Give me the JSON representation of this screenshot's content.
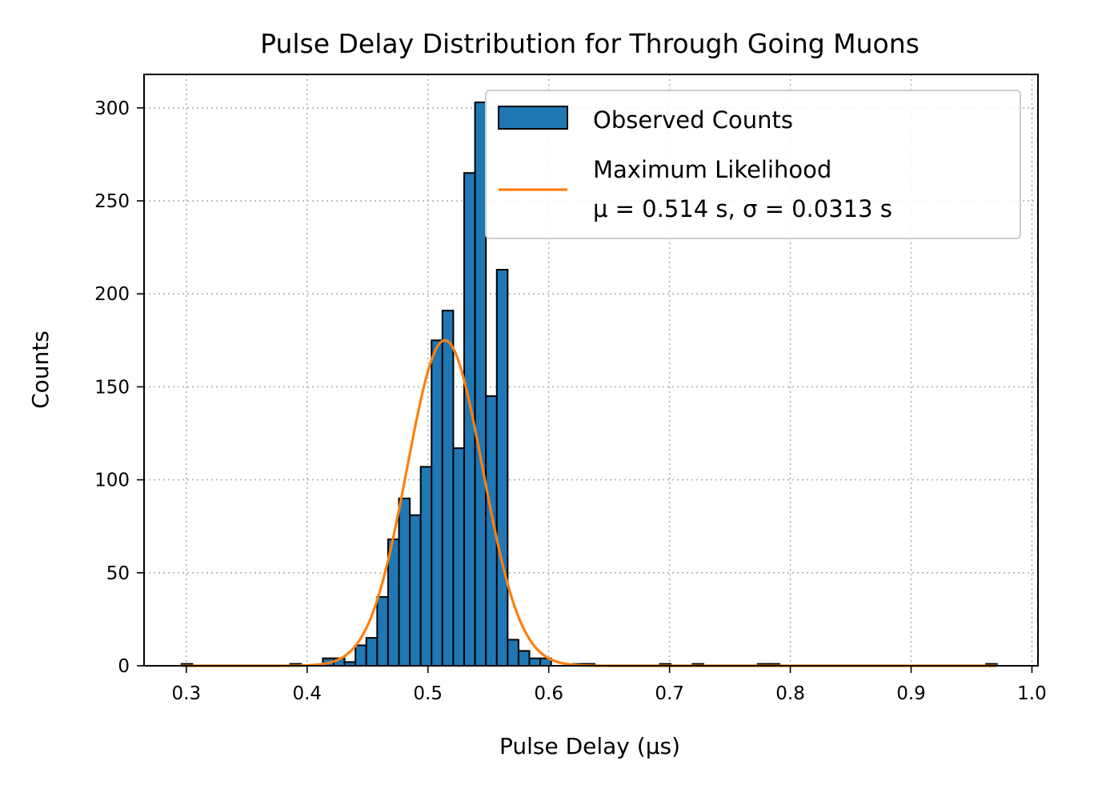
{
  "chart_data": {
    "type": "histogram",
    "title": "Pulse Delay Distribution for Through Going Muons",
    "xlabel": "Pulse Delay (μs)",
    "ylabel": "Counts",
    "xlim": [
      0.265,
      1.005
    ],
    "ylim": [
      0,
      318
    ],
    "grid": true,
    "legend_position": "top-right",
    "x_ticks": [
      "0.3",
      "0.4",
      "0.5",
      "0.6",
      "0.7",
      "0.8",
      "0.9",
      "1.0"
    ],
    "y_ticks": [
      "0",
      "50",
      "100",
      "150",
      "200",
      "250",
      "300"
    ],
    "colors": {
      "bars": "#1f77b4",
      "bar_edge": "#000000",
      "fit_line": "#ff7f0e",
      "grid": "#b0b0b0"
    },
    "histogram": {
      "name": "Observed Counts",
      "bin_width": 0.009,
      "bin_starts": [
        0.296,
        0.386,
        0.413,
        0.422,
        0.431,
        0.44,
        0.449,
        0.458,
        0.467,
        0.476,
        0.485,
        0.494,
        0.503,
        0.512,
        0.521,
        0.53,
        0.539,
        0.548,
        0.557,
        0.566,
        0.575,
        0.584,
        0.593,
        0.62,
        0.629,
        0.692,
        0.719,
        0.773,
        0.782,
        0.962
      ],
      "counts": [
        1,
        1,
        4,
        4,
        2,
        11,
        15,
        37,
        68,
        90,
        81,
        107,
        175,
        191,
        117,
        265,
        303,
        145,
        213,
        14,
        8,
        4,
        4,
        1,
        1,
        1,
        1,
        1,
        1,
        1
      ]
    },
    "fit": {
      "name": "Maximum Likelihood",
      "params_label": "μ = 0.514 s, σ = 0.0313 s",
      "mu": 0.514,
      "sigma": 0.0313,
      "amplitude": 175,
      "x_range": [
        0.296,
        0.971
      ]
    }
  }
}
